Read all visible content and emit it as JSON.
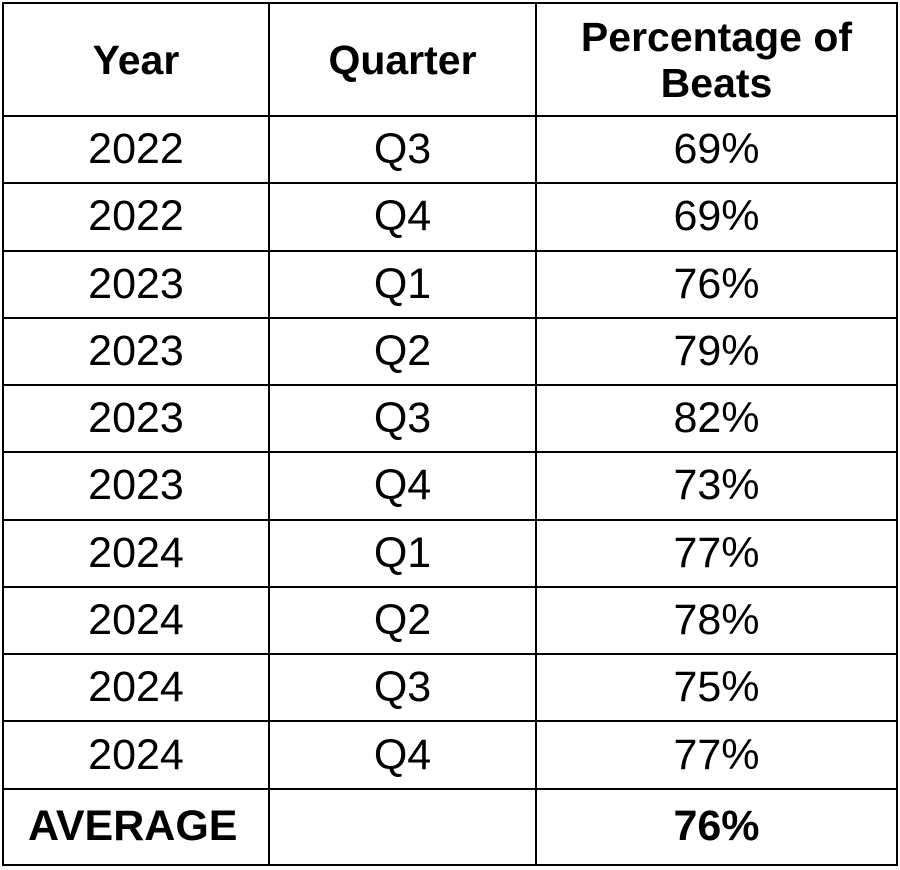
{
  "table": {
    "headers": {
      "year": "Year",
      "quarter": "Quarter",
      "percentage_line1": "Percentage of",
      "percentage_line2": "Beats"
    },
    "rows": [
      {
        "year": "2022",
        "quarter": "Q3",
        "percentage": "69%"
      },
      {
        "year": "2022",
        "quarter": "Q4",
        "percentage": "69%"
      },
      {
        "year": "2023",
        "quarter": "Q1",
        "percentage": "76%"
      },
      {
        "year": "2023",
        "quarter": "Q2",
        "percentage": "79%"
      },
      {
        "year": "2023",
        "quarter": "Q3",
        "percentage": "82%"
      },
      {
        "year": "2023",
        "quarter": "Q4",
        "percentage": "73%"
      },
      {
        "year": "2024",
        "quarter": "Q1",
        "percentage": "77%"
      },
      {
        "year": "2024",
        "quarter": "Q2",
        "percentage": "78%"
      },
      {
        "year": "2024",
        "quarter": "Q3",
        "percentage": "75%"
      },
      {
        "year": "2024",
        "quarter": "Q4",
        "percentage": "77%"
      }
    ],
    "summary": {
      "label": "AVERAGE",
      "quarter": "",
      "percentage": "76%"
    }
  }
}
